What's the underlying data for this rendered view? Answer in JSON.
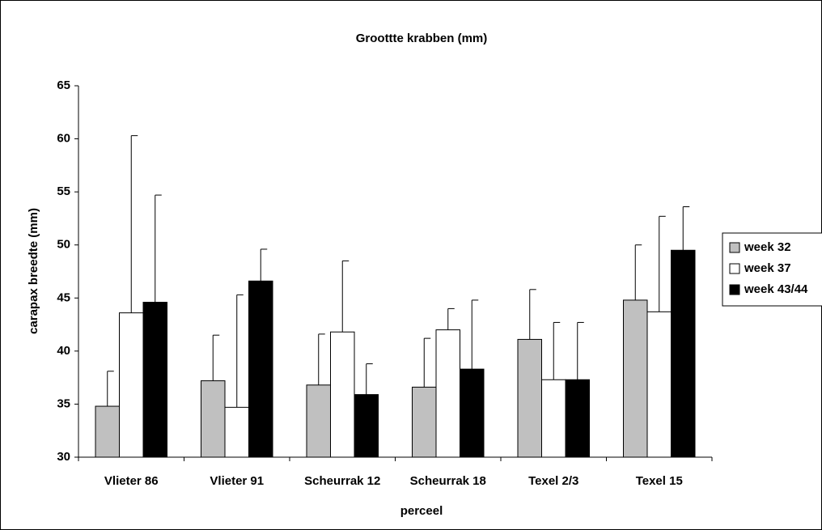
{
  "chart_data": {
    "type": "bar",
    "title": "Groottte krabben (mm)",
    "x_label": "perceel",
    "y_label": "carapax breedte (mm)",
    "categories": [
      "Vlieter 86",
      "Vlieter 91",
      "Scheurrak 12",
      "Scheurrak 18",
      "Texel 2/3",
      "Texel 15"
    ],
    "series": [
      {
        "name": "week 32",
        "color": "#c0c0c0",
        "values": [
          34.8,
          37.2,
          36.8,
          36.6,
          41.1,
          44.8
        ],
        "errors": [
          3.3,
          4.3,
          4.8,
          4.6,
          4.7,
          5.2
        ]
      },
      {
        "name": "week 37",
        "color": "#ffffff",
        "values": [
          43.6,
          34.7,
          41.8,
          42.0,
          37.3,
          43.7
        ],
        "errors": [
          16.7,
          10.6,
          6.7,
          2.0,
          5.4,
          9.0
        ]
      },
      {
        "name": "week 43/44",
        "color": "#000000",
        "values": [
          44.6,
          46.6,
          35.9,
          38.3,
          37.3,
          49.5
        ],
        "errors": [
          10.1,
          3.0,
          2.9,
          6.5,
          5.4,
          4.1
        ]
      }
    ],
    "ylim": [
      30,
      65
    ],
    "yticks": [
      30,
      35,
      40,
      45,
      50,
      55,
      60,
      65
    ],
    "grid": false,
    "legend": "right"
  }
}
